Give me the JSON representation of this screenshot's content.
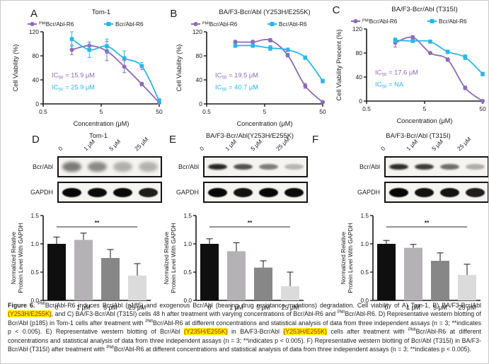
{
  "figure": {
    "caption_segments": [
      {
        "t": "Figure 6. ",
        "b": true
      },
      {
        "t": "PMI",
        "sup": true
      },
      {
        "t": "Bcr/Abl-R6 induces Bcr/Abl (p185) and exogenous Bcr/Abl (bearing drug resistance mutations) degradation. Cell viability of A) Tom-1, B) BA/F3-Bcr/Abl "
      },
      {
        "t": "(Y253H/E255K)",
        "hl": true
      },
      {
        "t": ", and C) BA/F3-Bcr/Abl (T315I) cells 48 h after treatment with varying concentrations of Bcr/Abl-R6 and "
      },
      {
        "t": "PMI",
        "sup": true
      },
      {
        "t": "Bcr/Abl-R6. D) Representative western blotting of Bcr/Abl (p185) in Tom-1 cells after treatment with "
      },
      {
        "t": "PMI",
        "sup": true
      },
      {
        "t": "Bcr/Abl-R6 at different concentrations and statistical analysis of data from three independent assays (n = 3; **indicates p < 0.005). E) Representative western blotting of Bcr/Abl "
      },
      {
        "t": "(Y235H/E255K)",
        "hl": true
      },
      {
        "t": " in BA/F3-Bcr/Abl "
      },
      {
        "t": "(Y253H/E255K)",
        "hl": true
      },
      {
        "t": " cells after treatment with "
      },
      {
        "t": "PMI",
        "sup": true
      },
      {
        "t": "Bcr/Abl-R6 at different concentrations and statistical analysis of data from three independent assays (n = 3; **indicates p < 0.005). F) Representative western blotting of Bcr/Abl (T315I) in BA/F3-Bcr/Abl (T315I) after treatment with "
      },
      {
        "t": "PMI",
        "sup": true
      },
      {
        "t": "Bcr/Abl-R6 at different concentrations and statistical analysis of data from three independent assays (n = 3; **indicates p < 0.005)."
      }
    ]
  },
  "panels": {
    "A": {
      "letter": "A"
    },
    "B": {
      "letter": "B"
    },
    "C": {
      "letter": "C"
    },
    "D": {
      "letter": "D"
    },
    "E": {
      "letter": "E"
    },
    "F": {
      "letter": "F"
    }
  },
  "colors": {
    "purple": "#8d6ab7",
    "cyan": "#2ab6e8",
    "highlight_bg": "#ffef00",
    "highlight_text": "#a5281b"
  },
  "blots": {
    "D": {
      "title": "Tom-1",
      "lanes": [
        "0",
        "1 μM",
        "5 μM",
        "25 μM"
      ],
      "rows": [
        {
          "label": "Bcr/Abl",
          "kind": "faint",
          "intensities": [
            0.7,
            0.62,
            0.4,
            0.38
          ]
        },
        {
          "label": "GAPDH",
          "kind": "strong",
          "intensities": [
            1,
            0.98,
            0.98,
            0.9
          ]
        }
      ]
    },
    "E": {
      "title": "BA/F3-Bcr/Abl(Y253H/E255K)",
      "lanes": [
        "0",
        "1 μM",
        "5 μM",
        "25 μM"
      ],
      "rows": [
        {
          "label": "Bcr/Abl",
          "kind": "sharp",
          "intensities": [
            0.95,
            0.75,
            0.55,
            0.28
          ]
        },
        {
          "label": "GAPDH",
          "kind": "strong",
          "intensities": [
            1,
            0.95,
            1,
            0.98
          ]
        }
      ]
    },
    "F": {
      "title": "BA/F3-Bcr/Abl (T315I)",
      "lanes": [
        "0",
        "1 μM",
        "5 μM",
        "25 μM"
      ],
      "rows": [
        {
          "label": "Bcr/Abl",
          "kind": "sharp",
          "intensities": [
            0.92,
            0.85,
            0.62,
            0.32
          ]
        },
        {
          "label": "GAPDH",
          "kind": "strong",
          "intensities": [
            1,
            0.95,
            0.95,
            0.9
          ]
        }
      ]
    }
  },
  "chart_data": [
    {
      "id": "A",
      "type": "line",
      "panel": "A",
      "title": "Tom-1",
      "xlabel": "Concentration (μM)",
      "ylabel": "Cell Viability (%)",
      "xscale": "log",
      "xlim": [
        0.5,
        50
      ],
      "ylim": [
        0,
        120
      ],
      "xticks": [
        "0.5",
        "5",
        "50"
      ],
      "yticks": [
        0,
        40,
        80,
        120
      ],
      "x": [
        1.56,
        3.12,
        6.25,
        12.5,
        25,
        50
      ],
      "series": [
        {
          "name": "Bcr/Abl-R6",
          "name_sup": "PMI",
          "color": "#8d6ab7",
          "marker": "circle",
          "values": [
            90,
            97,
            88,
            62,
            33,
            2
          ],
          "err": [
            8,
            6,
            16,
            10,
            3,
            2
          ]
        },
        {
          "name": "Bcr/Abl-R6",
          "name_sup": "",
          "color": "#2ab6e8",
          "marker": "square",
          "values": [
            108,
            90,
            96,
            76,
            63,
            5
          ],
          "err": [
            12,
            13,
            12,
            12,
            6,
            4
          ]
        }
      ],
      "ic50": [
        {
          "pre": "IC",
          "sub": "50",
          "rest": " = 15.9 μM",
          "color": "#8d6ab7"
        },
        {
          "pre": "IC",
          "sub": "50",
          "rest": " = 25.9 μM",
          "color": "#2ab6e8"
        }
      ]
    },
    {
      "id": "B",
      "type": "line",
      "panel": "B",
      "title": "BA/F3-Bcr/Abl (Y253H/E255K)",
      "xlabel": "Concentration (μM)",
      "ylabel": "Cell Viability (%)",
      "xscale": "log",
      "xlim": [
        0.5,
        50
      ],
      "ylim": [
        0,
        120
      ],
      "xticks": [
        "0.5",
        "5",
        "50"
      ],
      "yticks": [
        0,
        40,
        80,
        120
      ],
      "x": [
        1.56,
        3.12,
        6.25,
        12.5,
        25,
        50
      ],
      "series": [
        {
          "name": "Bcr/Abl-R6",
          "name_sup": "PMI",
          "color": "#8d6ab7",
          "marker": "circle",
          "values": [
            103,
            103,
            106,
            81,
            30,
            3
          ],
          "err": [
            3,
            3,
            3,
            3,
            4,
            2
          ]
        },
        {
          "name": "Bcr/Abl-R6",
          "name_sup": "",
          "color": "#2ab6e8",
          "marker": "square",
          "values": [
            97,
            97,
            93,
            90,
            77,
            38
          ],
          "err": [
            3,
            3,
            4,
            3,
            3,
            3
          ]
        }
      ],
      "ic50": [
        {
          "pre": "IC",
          "sub": "50",
          "rest": " = 19.5 μM",
          "color": "#8d6ab7"
        },
        {
          "pre": "IC",
          "sub": "50",
          "rest": " = 40.7 μM",
          "color": "#2ab6e8"
        }
      ]
    },
    {
      "id": "C",
      "type": "line",
      "panel": "C",
      "title": "BA/F3-Bcr/Abl (T315I)",
      "xlabel": "Concentration (μM)",
      "ylabel": "Cell Viability Precent (%)",
      "xscale": "log",
      "xlim": [
        0.5,
        50
      ],
      "ylim": [
        0,
        120
      ],
      "xticks": [
        "0.5",
        "5",
        "50"
      ],
      "yticks": [
        0,
        40,
        80,
        120
      ],
      "x": [
        1.56,
        3.12,
        6.25,
        12.5,
        25,
        50
      ],
      "series": [
        {
          "name": "Bcr/Abl-R6",
          "name_sup": "PMI",
          "color": "#8d6ab7",
          "marker": "circle",
          "values": [
            97,
            106,
            80,
            69,
            22,
            0
          ],
          "err": [
            7,
            3,
            2,
            3,
            3,
            2
          ]
        },
        {
          "name": "Bcr/Abl-R6",
          "name_sup": "",
          "color": "#2ab6e8",
          "marker": "square",
          "values": [
            101,
            100,
            99,
            82,
            73,
            45
          ],
          "err": [
            4,
            2,
            2,
            3,
            4,
            3
          ]
        }
      ],
      "ic50": [
        {
          "pre": "IC",
          "sub": "50",
          "rest": " = 17.6 μM",
          "color": "#8d6ab7"
        },
        {
          "pre": "IC",
          "sub": "50",
          "rest": " = NA",
          "color": "#2ab6e8"
        }
      ]
    },
    {
      "id": "D",
      "type": "bar",
      "panel": "D",
      "ylabel_lines": [
        "Normalized Relative",
        "Protein Level With GAPDH"
      ],
      "categories": [
        "0",
        "1 μM",
        "5 μM",
        "25 μM"
      ],
      "values": [
        1.0,
        1.07,
        0.75,
        0.44
      ],
      "errors": [
        0.12,
        0.12,
        0.15,
        0.21
      ],
      "bar_colors": [
        "#0f0f0f",
        "#b5b2b5",
        "#878787",
        "#dbdbdb"
      ],
      "yticks": [
        "0.0",
        "0.5",
        "1.0",
        "1.5"
      ],
      "ylim": [
        0,
        1.5
      ],
      "significance": {
        "label": "**",
        "y": 1.3
      }
    },
    {
      "id": "E",
      "type": "bar",
      "panel": "E",
      "ylabel_lines": [
        "Normalized Relative",
        "Protein Level With GAPDH"
      ],
      "categories": [
        "0",
        "1 μM",
        "5 μM",
        "25 μM"
      ],
      "values": [
        1.0,
        0.87,
        0.58,
        0.25
      ],
      "errors": [
        0.09,
        0.15,
        0.12,
        0.25
      ],
      "bar_colors": [
        "#0f0f0f",
        "#b5b2b5",
        "#878787",
        "#dbdbdb"
      ],
      "yticks": [
        "0.0",
        "0.5",
        "1.0",
        "1.5"
      ],
      "ylim": [
        0,
        1.5
      ],
      "significance": {
        "label": "**",
        "y": 1.3
      }
    },
    {
      "id": "F",
      "type": "bar",
      "panel": "F",
      "ylabel_lines": [
        "Normalized Relative",
        "Protein Level With GAPDH"
      ],
      "categories": [
        "0",
        "1 μM",
        "5 μM",
        "25 μM"
      ],
      "values": [
        1.0,
        0.93,
        0.7,
        0.45
      ],
      "errors": [
        0.06,
        0.06,
        0.14,
        0.19
      ],
      "bar_colors": [
        "#0f0f0f",
        "#b5b2b5",
        "#878787",
        "#dbdbdb"
      ],
      "yticks": [
        "0.0",
        "0.5",
        "1.0",
        "1.5"
      ],
      "ylim": [
        0,
        1.5
      ],
      "significance": {
        "label": "**",
        "y": 1.3
      }
    }
  ]
}
